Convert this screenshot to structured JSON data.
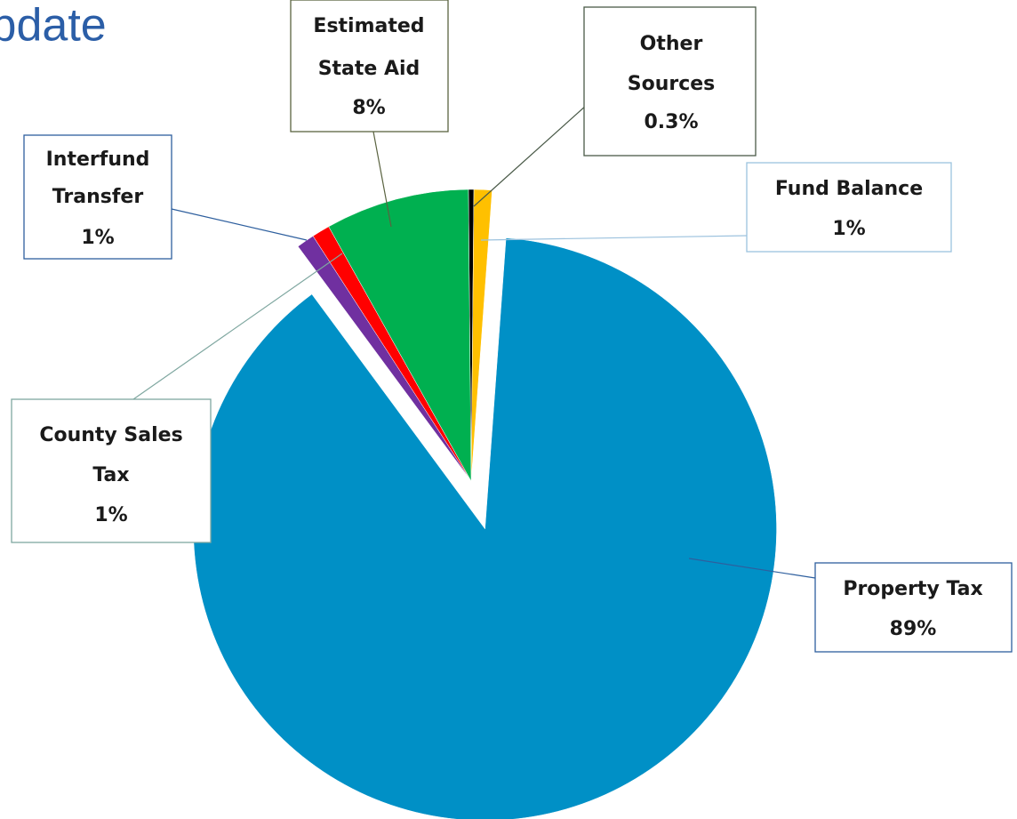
{
  "title": "Update",
  "chart_data": {
    "type": "pie",
    "categories": [
      "Other Sources *",
      "Fund Balance",
      "Property Tax",
      "Interfund Transfer",
      "County Sales Tax",
      "Estimated State Aid"
    ],
    "values": [
      0.3,
      1,
      89,
      1,
      1,
      8
    ],
    "value_labels": [
      "0.3%",
      "1%",
      "89%",
      "1%",
      "1%",
      "8%"
    ],
    "colors": [
      "#000000",
      "#ffc000",
      "#0090c6",
      "#7030a0",
      "#ff0000",
      "#00b050"
    ]
  }
}
